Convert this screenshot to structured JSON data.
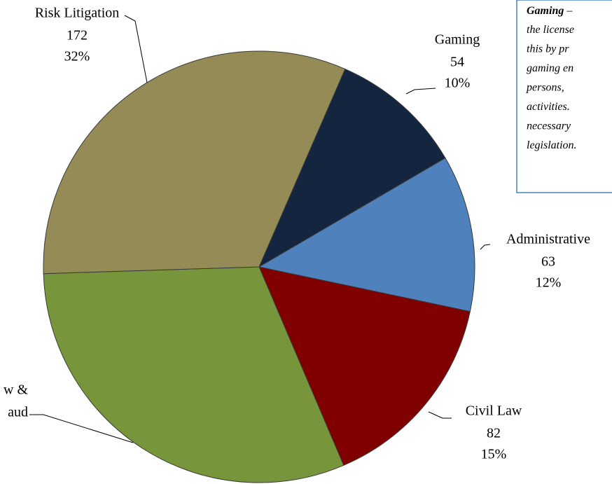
{
  "chart_data": {
    "type": "pie",
    "categories": [
      [
        "Gaming"
      ],
      [
        "Administrative"
      ],
      [
        "Civil Law"
      ],
      [
        "w &",
        "aud"
      ],
      [
        "Risk Litigation"
      ]
    ],
    "values": [
      54,
      63,
      82,
      166,
      172
    ],
    "value_labels": [
      "10%",
      "12%",
      "15%",
      null,
      "32%"
    ],
    "colors": [
      "#14263f",
      "#4f81bd",
      "#800000",
      "#77963c",
      "#958b56"
    ],
    "note": {
      "bold": "Gaming",
      "lines": [
        "–",
        "the license",
        "this by pr",
        "gaming en",
        "persons,",
        "activities.",
        "necessary",
        "legislation."
      ]
    }
  }
}
